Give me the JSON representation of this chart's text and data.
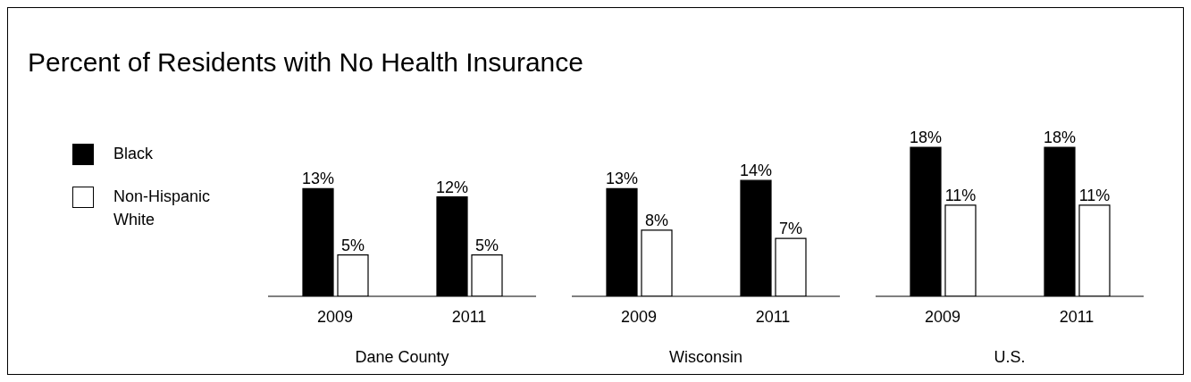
{
  "chart_data": [
    {
      "type": "bar",
      "title": "Percent of Residents with No Health Insurance",
      "categories": [
        "2009",
        "2011"
      ],
      "xlabel": "Dane County",
      "legend": "left",
      "series": [
        {
          "name": "Black",
          "color": "#000000",
          "values": [
            13,
            12
          ],
          "value_labels": [
            "13%",
            "12%"
          ]
        },
        {
          "name": "Non-Hispanic White",
          "color": "#ffffff",
          "values": [
            5,
            5
          ],
          "value_labels": [
            "5%",
            "5%"
          ]
        }
      ]
    },
    {
      "type": "bar",
      "categories": [
        "2009",
        "2011"
      ],
      "xlabel": "Wisconsin",
      "series": [
        {
          "color": "#000000",
          "values": [
            13,
            14
          ],
          "value_labels": [
            "13%",
            "14%"
          ]
        },
        {
          "color": "#ffffff",
          "values": [
            8,
            7
          ],
          "value_labels": [
            "8%",
            "7%"
          ]
        }
      ]
    },
    {
      "type": "bar",
      "categories": [
        "2009",
        "2011"
      ],
      "xlabel": "U.S.",
      "series": [
        {
          "color": "#000000",
          "values": [
            18,
            18
          ],
          "value_labels": [
            "18%",
            "18%"
          ]
        },
        {
          "color": "#ffffff",
          "values": [
            11,
            11
          ],
          "value_labels": [
            "11%",
            "11%"
          ]
        }
      ]
    }
  ]
}
